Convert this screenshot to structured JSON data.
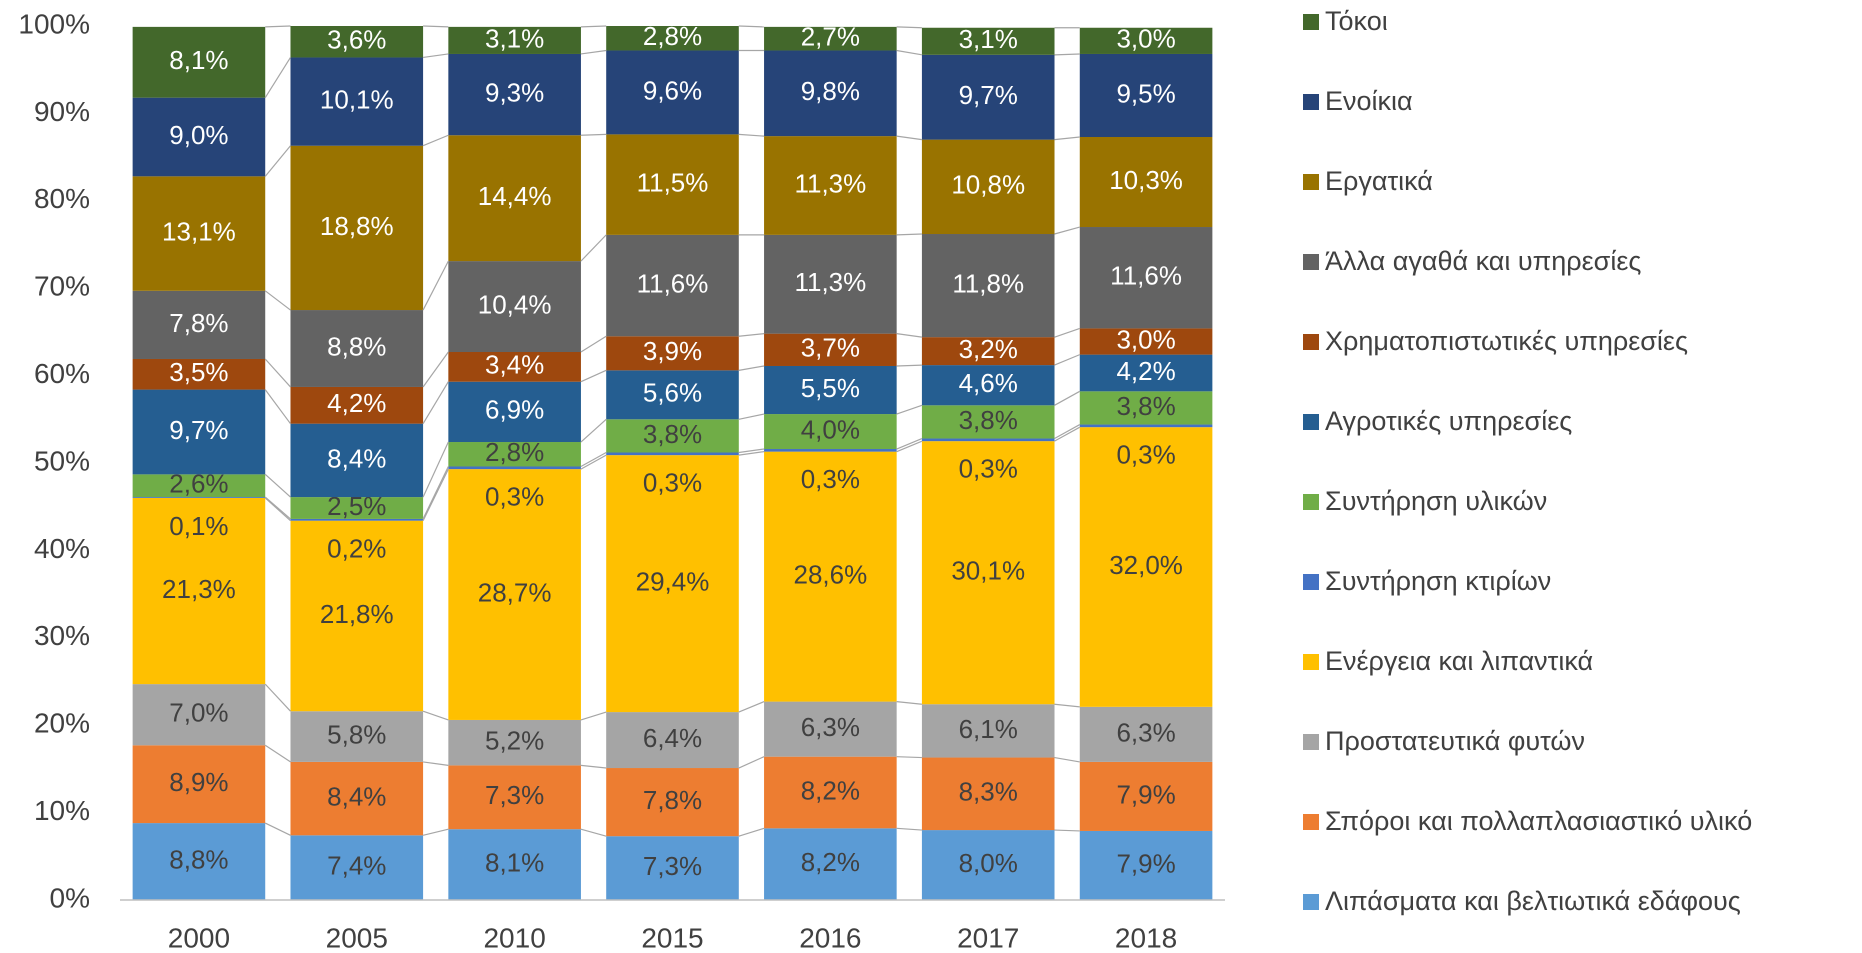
{
  "chart_data": {
    "type": "stacked_bar",
    "categories": [
      "2000",
      "2005",
      "2010",
      "2015",
      "2016",
      "2017",
      "2018"
    ],
    "ylim": [
      0,
      100
    ],
    "yticks": [
      {
        "value": 0,
        "label": "0%"
      },
      {
        "value": 10,
        "label": "10%"
      },
      {
        "value": 20,
        "label": "20%"
      },
      {
        "value": 30,
        "label": "30%"
      },
      {
        "value": 40,
        "label": "40%"
      },
      {
        "value": 50,
        "label": "50%"
      },
      {
        "value": 60,
        "label": "60%"
      },
      {
        "value": 70,
        "label": "70%"
      },
      {
        "value": 80,
        "label": "80%"
      },
      {
        "value": 90,
        "label": "90%"
      },
      {
        "value": 100,
        "label": "100%"
      }
    ],
    "series": [
      {
        "name": "Λιπάσματα και βελτιωτικά εδάφους",
        "color": "#5b9bd5",
        "values": [
          8.8,
          7.4,
          8.1,
          7.3,
          8.2,
          8.0,
          7.9
        ],
        "value_labels": [
          "8,8%",
          "7,4%",
          "8,1%",
          "7,3%",
          "8,2%",
          "8,0%",
          "7,9%"
        ]
      },
      {
        "name": "Σπόροι και πολλαπλασιαστικό υλικό",
        "color": "#ed7d31",
        "values": [
          8.9,
          8.4,
          7.3,
          7.8,
          8.2,
          8.3,
          7.9
        ],
        "value_labels": [
          "8,9%",
          "8,4%",
          "7,3%",
          "7,8%",
          "8,2%",
          "8,3%",
          "7,9%"
        ]
      },
      {
        "name": "Προστατευτικά φυτών",
        "color": "#a5a5a5",
        "values": [
          7.0,
          5.8,
          5.2,
          6.4,
          6.3,
          6.1,
          6.3
        ],
        "value_labels": [
          "7,0%",
          "5,8%",
          "5,2%",
          "6,4%",
          "6,3%",
          "6,1%",
          "6,3%"
        ]
      },
      {
        "name": "Ενέργεια και λιπαντικά",
        "color": "#ffc000",
        "values": [
          21.3,
          21.8,
          28.7,
          29.4,
          28.6,
          30.1,
          32.0
        ],
        "value_labels": [
          "21,3%",
          "21,8%",
          "28,7%",
          "29,4%",
          "28,6%",
          "30,1%",
          "32,0%"
        ]
      },
      {
        "name": "Συντήρηση κτιρίων",
        "color": "#4472c4",
        "values": [
          0.1,
          0.2,
          0.3,
          0.3,
          0.3,
          0.3,
          0.3
        ],
        "value_labels": [
          "0,1%",
          "0,2%",
          "0,3%",
          "0,3%",
          "0,3%",
          "0,3%",
          "0,3%"
        ]
      },
      {
        "name": "Συντήρηση υλικών",
        "color": "#70ad47",
        "values": [
          2.6,
          2.5,
          2.8,
          3.8,
          4.0,
          3.8,
          3.8
        ],
        "value_labels": [
          "2,6%",
          "2,5%",
          "2,8%",
          "3,8%",
          "4,0%",
          "3,8%",
          "3,8%"
        ]
      },
      {
        "name": "Αγροτικές υπηρεσίες",
        "color": "#255e91",
        "values": [
          9.7,
          8.4,
          6.9,
          5.6,
          5.5,
          4.6,
          4.2
        ],
        "value_labels": [
          "9,7%",
          "8,4%",
          "6,9%",
          "5,6%",
          "5,5%",
          "4,6%",
          "4,2%"
        ]
      },
      {
        "name": "Χρηματοπιστωτικές υπηρεσίες",
        "color": "#9e480e",
        "values": [
          3.5,
          4.2,
          3.4,
          3.9,
          3.7,
          3.2,
          3.0
        ],
        "value_labels": [
          "3,5%",
          "4,2%",
          "3,4%",
          "3,9%",
          "3,7%",
          "3,2%",
          "3,0%"
        ]
      },
      {
        "name": "Άλλα αγαθά και υπηρεσίες",
        "color": "#636363",
        "values": [
          7.8,
          8.8,
          10.4,
          11.6,
          11.3,
          11.8,
          11.6
        ],
        "value_labels": [
          "7,8%",
          "8,8%",
          "10,4%",
          "11,6%",
          "11,3%",
          "11,8%",
          "11,6%"
        ]
      },
      {
        "name": "Εργατικά",
        "color": "#997300",
        "values": [
          13.1,
          18.8,
          14.4,
          11.5,
          11.3,
          10.8,
          10.3
        ],
        "value_labels": [
          "13,1%",
          "18,8%",
          "14,4%",
          "11,5%",
          "11,3%",
          "10,8%",
          "10,3%"
        ]
      },
      {
        "name": "Ενοίκια",
        "color": "#264478",
        "values": [
          9.0,
          10.1,
          9.3,
          9.6,
          9.8,
          9.7,
          9.5
        ],
        "value_labels": [
          "9,0%",
          "10,1%",
          "9,3%",
          "9,6%",
          "9,8%",
          "9,7%",
          "9,5%"
        ]
      },
      {
        "name": "Τόκοι",
        "color": "#43682b",
        "values": [
          8.1,
          3.6,
          3.1,
          2.8,
          2.7,
          3.1,
          3.0
        ],
        "value_labels": [
          "8,1%",
          "3,6%",
          "3,1%",
          "2,8%",
          "2,7%",
          "3,1%",
          "3,0%"
        ]
      }
    ]
  }
}
